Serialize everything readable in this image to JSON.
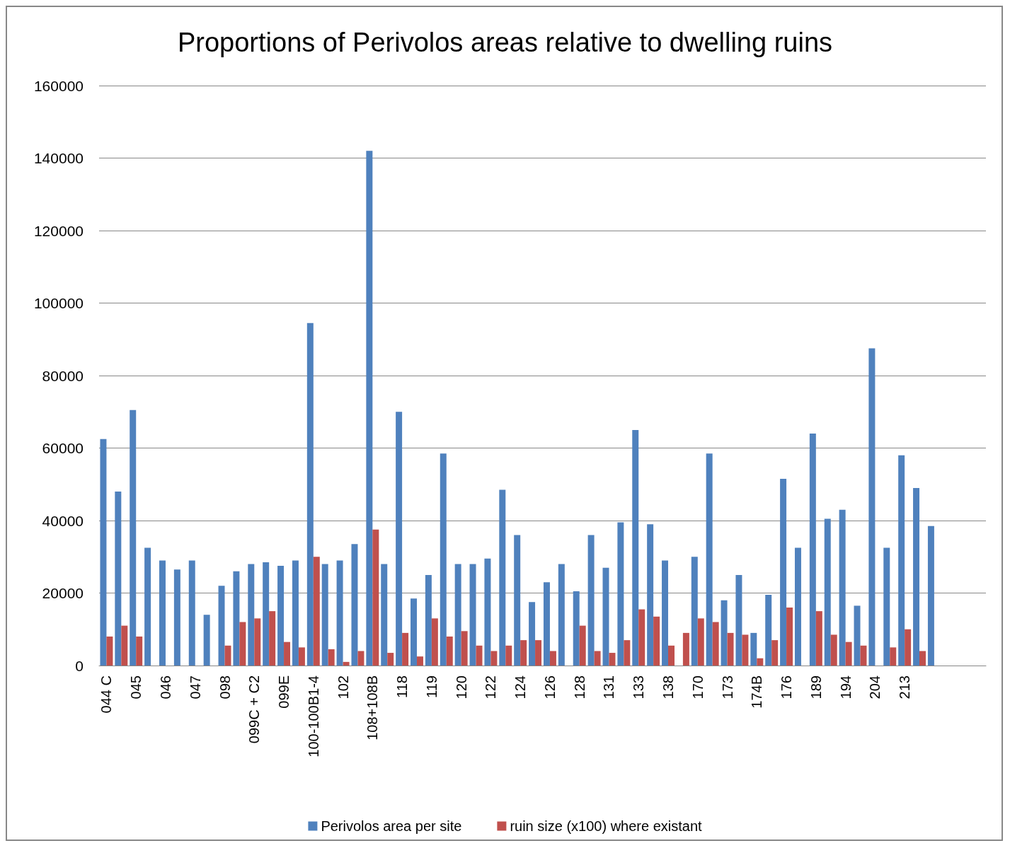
{
  "chart_data": {
    "type": "bar",
    "title": "Proportions of Perivolos areas relative to dwelling ruins",
    "categories": [
      "044 C",
      null,
      "045",
      null,
      "046",
      null,
      "047",
      null,
      "098",
      null,
      "099C + C2",
      null,
      "099E",
      null,
      "100-100B1-4",
      null,
      "102",
      null,
      "108+108B",
      null,
      "118",
      null,
      "119",
      null,
      "120",
      null,
      "122",
      null,
      "124",
      null,
      "126",
      null,
      "128",
      null,
      "131",
      null,
      "133",
      null,
      "138",
      null,
      "170",
      null,
      "173",
      null,
      "174B",
      null,
      "176",
      null,
      "189",
      null,
      "194",
      null,
      "204",
      null,
      "213",
      null,
      null,
      null,
      null,
      null
    ],
    "series": [
      {
        "name": "Perivolos area per site",
        "color": "#4f81bd",
        "values": [
          62500,
          48000,
          70500,
          32500,
          29000,
          26500,
          29000,
          14000,
          22000,
          26000,
          28000,
          28500,
          27500,
          29000,
          94500,
          28000,
          29000,
          33500,
          142000,
          28000,
          70000,
          18500,
          25000,
          58500,
          28000,
          28000,
          29500,
          48500,
          36000,
          17500,
          23000,
          28000,
          20500,
          36000,
          27000,
          39500,
          65000,
          39000,
          29000,
          null,
          30000,
          58500,
          18000,
          25000,
          9000,
          19500,
          51500,
          32500,
          64000,
          40500,
          43000,
          16500,
          87500,
          32500,
          58000,
          49000,
          38500,
          null,
          null,
          null
        ]
      },
      {
        "name": "ruin size (x100) where existant",
        "color": "#c0504d",
        "values": [
          8000,
          11000,
          8000,
          null,
          null,
          null,
          null,
          null,
          5500,
          12000,
          13000,
          15000,
          6500,
          5000,
          30000,
          4500,
          1000,
          4000,
          37500,
          3500,
          9000,
          2500,
          13000,
          8000,
          9500,
          5500,
          4000,
          5500,
          7000,
          7000,
          4000,
          null,
          11000,
          4000,
          3500,
          7000,
          15500,
          13500,
          5500,
          9000,
          13000,
          12000,
          9000,
          8500,
          2000,
          7000,
          16000,
          null,
          15000,
          8500,
          6500,
          5500,
          null,
          5000,
          10000,
          4000,
          null,
          null,
          null,
          null
        ]
      }
    ],
    "ylim": [
      0,
      160000
    ],
    "yticks": [
      0,
      20000,
      40000,
      60000,
      80000,
      100000,
      120000,
      140000,
      160000
    ],
    "grid": "y",
    "legend": "bottom"
  }
}
